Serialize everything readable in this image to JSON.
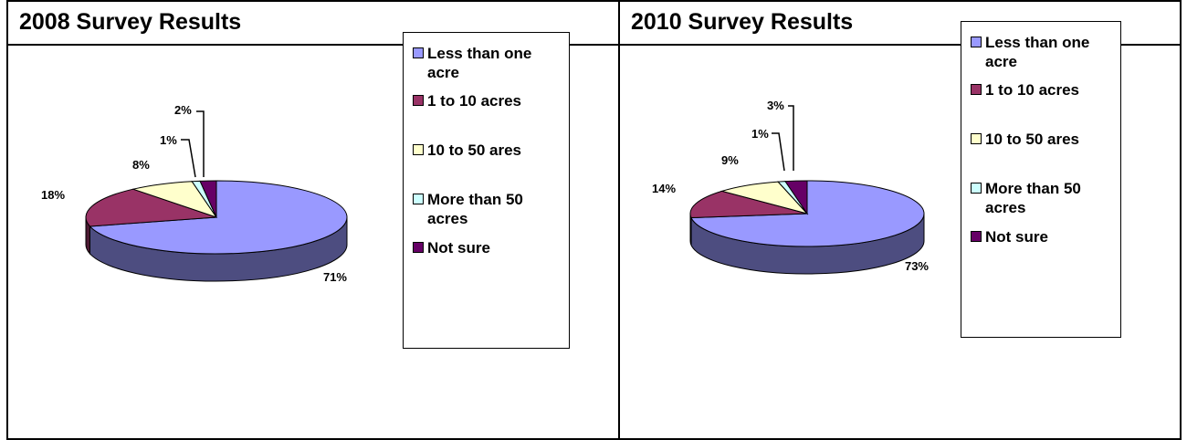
{
  "chart_data": [
    {
      "type": "pie",
      "title": "2008 Survey Results",
      "categories": [
        "Less than one acre",
        "1 to 10 acres",
        "10 to 50 ares",
        "More than 50 acres",
        "Not sure"
      ],
      "values": [
        71,
        18,
        8,
        1,
        2
      ],
      "value_labels": [
        "71%",
        "18%",
        "8%",
        "1%",
        "2%"
      ],
      "legend_lines": [
        [
          "Less than one",
          "acre"
        ],
        [
          "1 to 10 acres"
        ],
        [
          "10 to 50 ares"
        ],
        [
          "More than 50",
          "acres"
        ],
        [
          "Not sure"
        ]
      ],
      "colors": [
        "#9999ff",
        "#993366",
        "#ffffcc",
        "#ccffff",
        "#660066"
      ],
      "legend_placement": "right",
      "style": "3d"
    },
    {
      "type": "pie",
      "title": "2010 Survey Results",
      "categories": [
        "Less than one acre",
        "1 to 10 acres",
        "10 to 50 ares",
        "More than 50 acres",
        "Not sure"
      ],
      "values": [
        73,
        14,
        9,
        1,
        3
      ],
      "value_labels": [
        "73%",
        "14%",
        "9%",
        "1%",
        "3%"
      ],
      "legend_lines": [
        [
          "Less than one",
          "acre"
        ],
        [
          "1 to 10 acres"
        ],
        [
          "10 to 50 ares"
        ],
        [
          "More than 50",
          "acres"
        ],
        [
          "Not sure"
        ]
      ],
      "colors": [
        "#9999ff",
        "#993366",
        "#ffffcc",
        "#ccffff",
        "#660066"
      ],
      "legend_placement": "right",
      "style": "3d"
    }
  ]
}
